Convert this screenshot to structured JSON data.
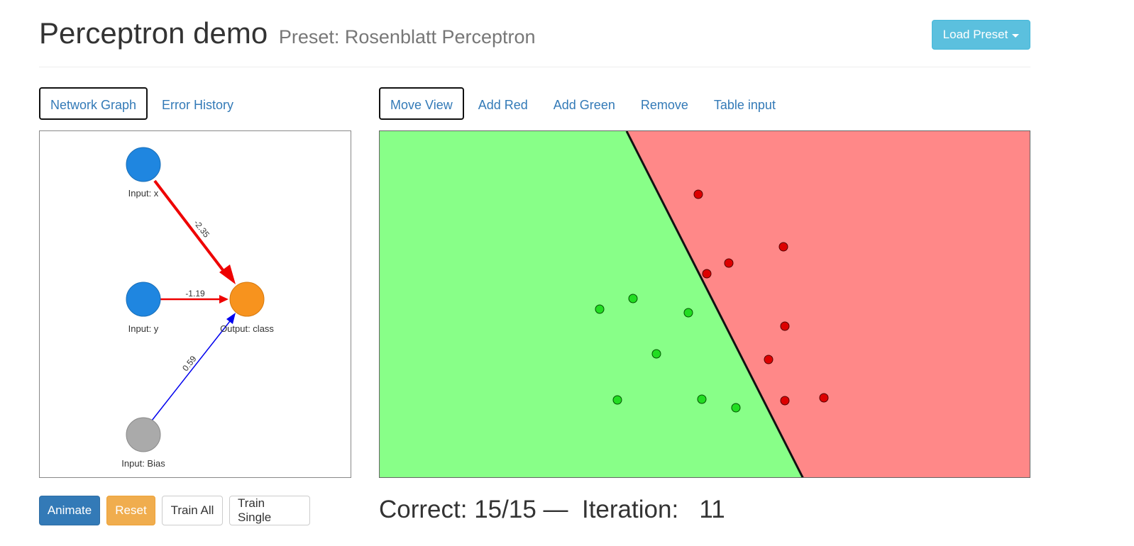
{
  "header": {
    "title": "Perceptron demo",
    "subtitle": "Preset: Rosenblatt Perceptron",
    "load_preset_label": "Load Preset"
  },
  "left_tabs": [
    {
      "label": "Network Graph",
      "active": true
    },
    {
      "label": "Error History",
      "active": false
    }
  ],
  "right_tabs": [
    {
      "label": "Move View",
      "active": true
    },
    {
      "label": "Add Red",
      "active": false
    },
    {
      "label": "Add Green",
      "active": false
    },
    {
      "label": "Remove",
      "active": false
    },
    {
      "label": "Table input",
      "active": false
    }
  ],
  "network": {
    "nodes": {
      "input_x": "Input: x",
      "input_y": "Input: y",
      "input_bias": "Input: Bias",
      "output": "Output: class"
    },
    "weights": {
      "x": "-2.35",
      "y": "-1.19",
      "bias": "0.59"
    },
    "colors": {
      "input": "#1f86e0",
      "output": "#f7931e",
      "bias": "#aaaaaa",
      "negative_edge": "#ee0000",
      "positive_edge": "#0000ee"
    }
  },
  "plot": {
    "colors": {
      "green_region": "#88ff88",
      "red_region": "#ff8888",
      "green_point": "#22dd22",
      "red_point": "#dd0000",
      "boundary": "#111111"
    }
  },
  "buttons": {
    "animate": "Animate",
    "reset": "Reset",
    "train_all": "Train All",
    "train_single": "Train Single"
  },
  "status": {
    "correct_label": "Correct:",
    "correct_value": "15/15",
    "separator": "—",
    "iteration_label": "Iteration:",
    "iteration_value": "11"
  }
}
